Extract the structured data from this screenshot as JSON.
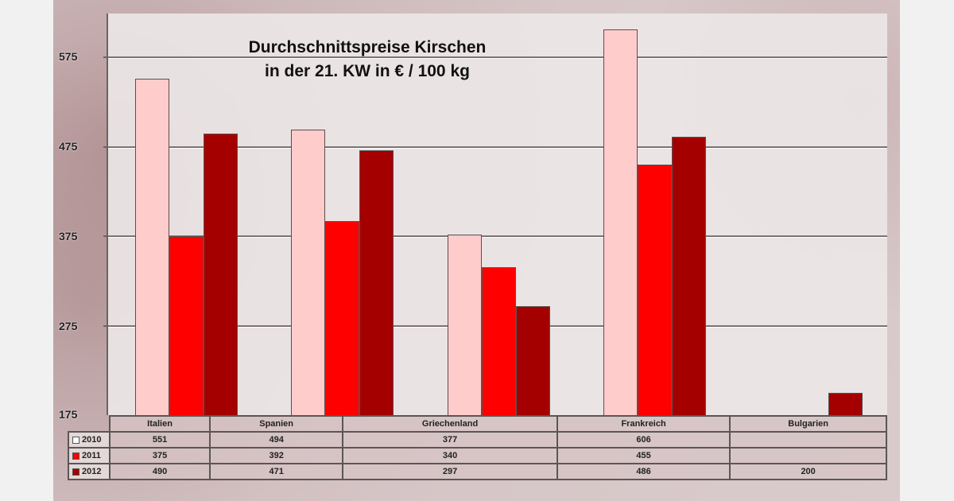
{
  "chart_data": {
    "type": "bar",
    "title": "Durchschnittspreise Kirschen in der 21. KW in € / 100 kg",
    "title_lines": [
      "Durchschnittspreise Kirschen",
      "in der 21. KW in € / 100 kg"
    ],
    "xlabel": "",
    "ylabel": "",
    "ylim": [
      175,
      625
    ],
    "yticks": [
      175,
      275,
      375,
      475,
      575
    ],
    "ytick_labels": [
      "175",
      "275",
      "375",
      "475",
      "575"
    ],
    "grid": true,
    "legend_position": "data-table-left",
    "categories": [
      "Italien",
      "Spanien",
      "Griechenland",
      "Frankreich",
      "Bulgarien"
    ],
    "series": [
      {
        "name": "2010",
        "color": "#ffcccc",
        "values": [
          551,
          494,
          377,
          606,
          null
        ]
      },
      {
        "name": "2011",
        "color": "#ff0000",
        "values": [
          375,
          392,
          340,
          455,
          null
        ]
      },
      {
        "name": "2012",
        "color": "#a50000",
        "values": [
          490,
          471,
          297,
          486,
          200
        ]
      }
    ],
    "data_table": {
      "rows": [
        {
          "label": "2010",
          "cells": [
            "551",
            "494",
            "377",
            "606",
            ""
          ]
        },
        {
          "label": "2011",
          "cells": [
            "375",
            "392",
            "340",
            "455",
            ""
          ]
        },
        {
          "label": "2012",
          "cells": [
            "490",
            "471",
            "297",
            "486",
            "200"
          ]
        }
      ]
    }
  }
}
